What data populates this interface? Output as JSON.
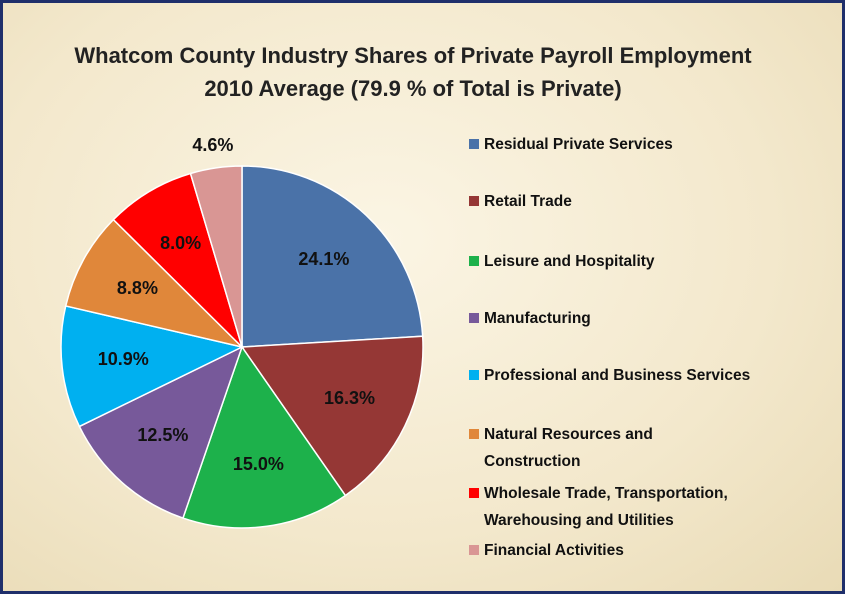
{
  "chart_data": {
    "type": "pie",
    "title": "Whatcom County Industry Shares of Private Payroll Employment",
    "subtitle": "2010 Average (79.9 % of Total is Private)",
    "categories": [
      "Residual Private Services",
      "Retail Trade",
      "Leisure and Hospitality",
      "Manufacturing",
      "Professional and Business Services",
      "Natural Resources and Construction",
      "Wholesale Trade, Transportation, Warehousing and Utilities",
      "Financial Activities"
    ],
    "values": [
      24.1,
      16.3,
      15.0,
      12.5,
      10.9,
      8.8,
      8.0,
      4.6
    ],
    "value_labels": [
      "24.1%",
      "16.3%",
      "15.0%",
      "12.5%",
      "10.9%",
      "8.8%",
      "8.0%",
      "4.6%"
    ],
    "colors": [
      "#4a72a8",
      "#953735",
      "#1db14b",
      "#77599a",
      "#00b0f0",
      "#e0873a",
      "#ff0000",
      "#d99694"
    ],
    "legend": "right"
  }
}
